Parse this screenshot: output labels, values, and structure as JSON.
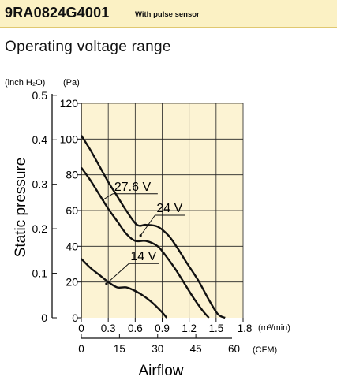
{
  "header": {
    "model": "9RA0824G4001",
    "subtitle": "With pulse sensor"
  },
  "section_title": "Operating voltage range",
  "chart_data": {
    "type": "line",
    "title": "",
    "xlabel": "Airflow",
    "ylabel": "Static pressure",
    "x_unit_primary": "(m³/min)",
    "x_unit_secondary": "(CFM)",
    "y_unit_left": "(inch H₂O)",
    "y_unit_right": "(Pa)",
    "xlim": [
      0,
      1.8
    ],
    "ylim": [
      0,
      120
    ],
    "x_ticks": [
      "0",
      "0.3",
      "0.6",
      "0.9",
      "1.2",
      "1.5",
      "1.8"
    ],
    "x_ticks_cfm": [
      "0",
      "15",
      "30",
      "45",
      "60"
    ],
    "y_ticks_pa": [
      "0",
      "20",
      "40",
      "60",
      "80",
      "100",
      "120"
    ],
    "y_ticks_inch": [
      "0",
      "0.1",
      "0.2",
      "0.3",
      "0.4",
      "0.5"
    ],
    "grid": true,
    "series": [
      {
        "name": "27.6 V",
        "x": [
          0,
          0.1,
          0.2,
          0.3,
          0.4,
          0.5,
          0.62,
          0.72,
          0.85,
          0.97,
          1.07,
          1.17,
          1.3,
          1.42,
          1.52,
          1.6
        ],
        "y": [
          102,
          94,
          85,
          76,
          68,
          60,
          52,
          52,
          51,
          46,
          39,
          31,
          21,
          10,
          2,
          0
        ]
      },
      {
        "name": "24 V",
        "x": [
          0,
          0.1,
          0.2,
          0.3,
          0.4,
          0.5,
          0.6,
          0.72,
          0.85,
          0.95,
          1.05,
          1.15,
          1.25,
          1.35,
          1.42
        ],
        "y": [
          84,
          77,
          69,
          61,
          54,
          47,
          43,
          43,
          40,
          34,
          27,
          19,
          11,
          4,
          0
        ]
      },
      {
        "name": "14 V",
        "x": [
          0,
          0.1,
          0.2,
          0.3,
          0.4,
          0.5,
          0.6,
          0.7,
          0.8,
          0.9,
          0.95
        ],
        "y": [
          33,
          28,
          24,
          20,
          17,
          17,
          15,
          12,
          8,
          3,
          0
        ]
      }
    ]
  }
}
